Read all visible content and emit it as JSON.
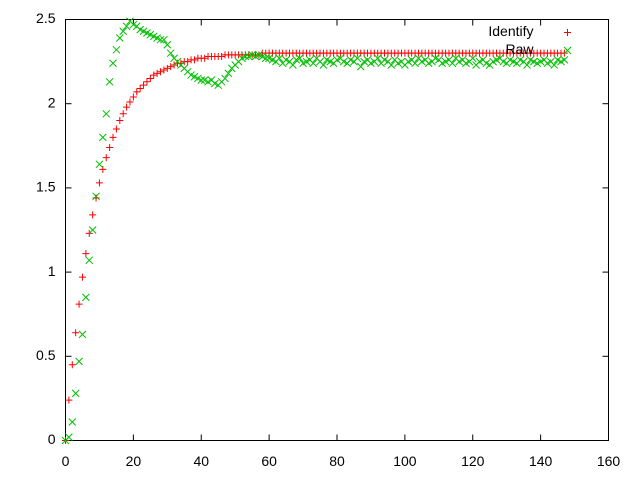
{
  "chart_data": {
    "type": "scatter",
    "x": [
      0,
      1,
      2,
      3,
      4,
      5,
      6,
      7,
      8,
      9,
      10,
      11,
      12,
      13,
      14,
      15,
      16,
      17,
      18,
      19,
      20,
      21,
      22,
      23,
      24,
      25,
      26,
      27,
      28,
      29,
      30,
      31,
      32,
      33,
      34,
      35,
      36,
      37,
      38,
      39,
      40,
      41,
      42,
      43,
      44,
      45,
      46,
      47,
      48,
      49,
      50,
      51,
      52,
      53,
      54,
      55,
      56,
      57,
      58,
      59,
      60,
      61,
      62,
      63,
      64,
      65,
      66,
      67,
      68,
      69,
      70,
      71,
      72,
      73,
      74,
      75,
      76,
      77,
      78,
      79,
      80,
      81,
      82,
      83,
      84,
      85,
      86,
      87,
      88,
      89,
      90,
      91,
      92,
      93,
      94,
      95,
      96,
      97,
      98,
      99,
      100,
      101,
      102,
      103,
      104,
      105,
      106,
      107,
      108,
      109,
      110,
      111,
      112,
      113,
      114,
      115,
      116,
      117,
      118,
      119,
      120,
      121,
      122,
      123,
      124,
      125,
      126,
      127,
      128,
      129,
      130,
      131,
      132,
      133,
      134,
      135,
      136,
      137,
      138,
      139,
      140,
      141,
      142,
      143,
      144,
      145,
      146,
      147
    ],
    "series": [
      {
        "name": "Identify",
        "color": "#ff0000",
        "marker": "plus",
        "values": [
          0,
          0.24,
          0.45,
          0.64,
          0.81,
          0.97,
          1.11,
          1.23,
          1.34,
          1.44,
          1.53,
          1.61,
          1.68,
          1.74,
          1.8,
          1.85,
          1.9,
          1.94,
          1.98,
          2.01,
          2.04,
          2.07,
          2.09,
          2.11,
          2.13,
          2.15,
          2.17,
          2.18,
          2.19,
          2.2,
          2.21,
          2.22,
          2.23,
          2.24,
          2.24,
          2.25,
          2.25,
          2.26,
          2.26,
          2.27,
          2.27,
          2.27,
          2.28,
          2.28,
          2.28,
          2.28,
          2.28,
          2.29,
          2.29,
          2.29,
          2.29,
          2.29,
          2.29,
          2.29,
          2.29,
          2.29,
          2.29,
          2.29,
          2.3,
          2.3,
          2.3,
          2.3,
          2.3,
          2.3,
          2.3,
          2.3,
          2.3,
          2.3,
          2.3,
          2.3,
          2.3,
          2.3,
          2.3,
          2.3,
          2.3,
          2.3,
          2.3,
          2.3,
          2.3,
          2.3,
          2.3,
          2.3,
          2.3,
          2.3,
          2.3,
          2.3,
          2.3,
          2.3,
          2.3,
          2.3,
          2.3,
          2.3,
          2.3,
          2.3,
          2.3,
          2.3,
          2.3,
          2.3,
          2.3,
          2.3,
          2.3,
          2.3,
          2.3,
          2.3,
          2.3,
          2.3,
          2.3,
          2.3,
          2.3,
          2.3,
          2.3,
          2.3,
          2.3,
          2.3,
          2.3,
          2.3,
          2.3,
          2.3,
          2.3,
          2.3,
          2.3,
          2.3,
          2.3,
          2.3,
          2.3,
          2.3,
          2.3,
          2.3,
          2.3,
          2.3,
          2.3,
          2.3,
          2.3,
          2.3,
          2.3,
          2.3,
          2.3,
          2.3,
          2.3,
          2.3,
          2.3,
          2.3,
          2.3,
          2.3,
          2.3,
          2.3,
          2.3,
          2.3
        ]
      },
      {
        "name": "Raw",
        "color": "#00c000",
        "marker": "cross",
        "values": [
          0,
          0.02,
          0.11,
          0.28,
          0.47,
          0.63,
          0.85,
          1.07,
          1.25,
          1.45,
          1.64,
          1.8,
          1.94,
          2.13,
          2.24,
          2.32,
          2.39,
          2.43,
          2.46,
          2.49,
          2.47,
          2.46,
          2.44,
          2.43,
          2.42,
          2.41,
          2.4,
          2.39,
          2.38,
          2.38,
          2.35,
          2.3,
          2.27,
          2.25,
          2.23,
          2.21,
          2.19,
          2.17,
          2.16,
          2.15,
          2.14,
          2.14,
          2.13,
          2.14,
          2.12,
          2.11,
          2.13,
          2.15,
          2.18,
          2.21,
          2.23,
          2.25,
          2.27,
          2.28,
          2.28,
          2.29,
          2.28,
          2.29,
          2.28,
          2.27,
          2.27,
          2.26,
          2.25,
          2.27,
          2.24,
          2.26,
          2.25,
          2.23,
          2.26,
          2.27,
          2.24,
          2.25,
          2.26,
          2.24,
          2.27,
          2.25,
          2.23,
          2.26,
          2.25,
          2.24,
          2.26,
          2.27,
          2.25,
          2.24,
          2.26,
          2.25,
          2.27,
          2.22,
          2.25,
          2.26,
          2.24,
          2.25,
          2.27,
          2.24,
          2.26,
          2.25,
          2.23,
          2.26,
          2.24,
          2.25,
          2.23,
          2.25,
          2.26,
          2.24,
          2.27,
          2.25,
          2.26,
          2.24,
          2.25,
          2.27,
          2.26,
          2.24,
          2.25,
          2.26,
          2.24,
          2.27,
          2.25,
          2.26,
          2.24,
          2.25,
          2.27,
          2.23,
          2.25,
          2.26,
          2.24,
          2.23,
          2.25,
          2.26,
          2.27,
          2.25,
          2.24,
          2.26,
          2.25,
          2.24,
          2.26,
          2.25,
          2.23,
          2.26,
          2.25,
          2.24,
          2.25,
          2.26,
          2.24,
          2.25,
          2.23,
          2.26,
          2.25,
          2.26
        ]
      }
    ],
    "xlim": [
      0,
      160
    ],
    "xticks": [
      0,
      20,
      40,
      60,
      80,
      100,
      120,
      140,
      160
    ],
    "ylim": [
      0,
      2.5
    ],
    "yticks": [
      0,
      0.5,
      1,
      1.5,
      2,
      2.5
    ],
    "grid": false,
    "legend": "top-right"
  }
}
